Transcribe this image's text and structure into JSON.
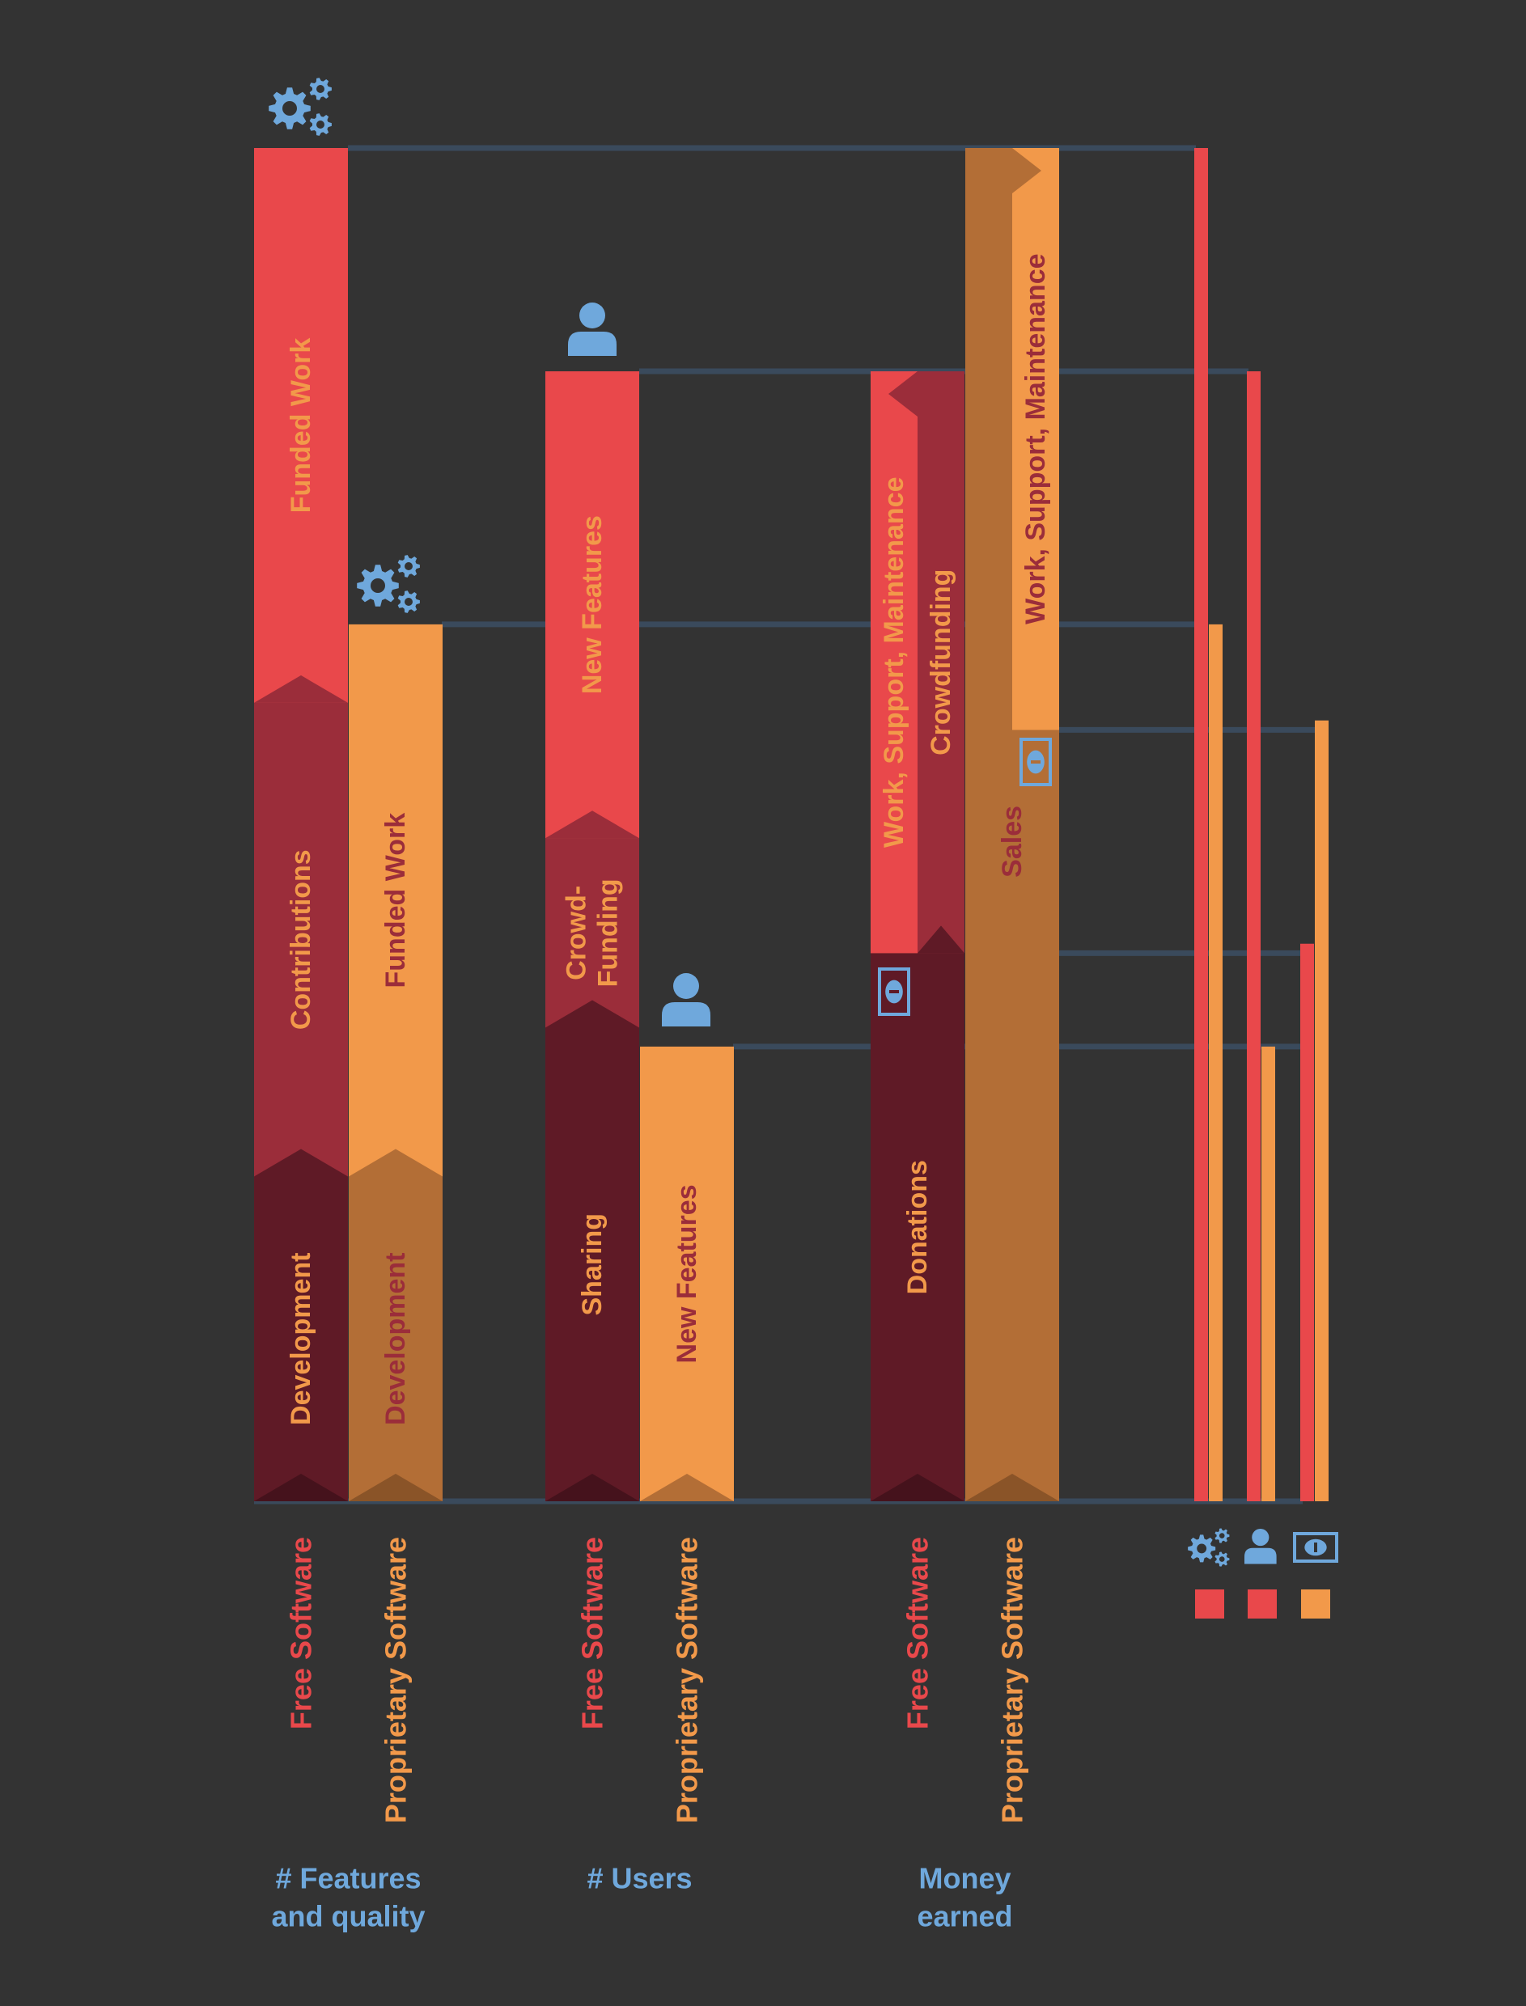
{
  "colors": {
    "background": "#333333",
    "guide": "#3a4a5c",
    "blue": "#6fa8dc",
    "red": "#e9484b",
    "crimson": "#9b2d3a",
    "maroon": "#5f1a26",
    "maroon_dark": "#45121c",
    "orange": "#f2994a",
    "brown": "#b36e36",
    "brown_dark": "#8a5428"
  },
  "chart_data": {
    "type": "bar",
    "stacked": true,
    "ylim": [
      0,
      100
    ],
    "groups": [
      {
        "title": "# Features and quality",
        "title_lines": [
          "# Features",
          "and quality"
        ],
        "icon": "gears-icon",
        "bars": [
          {
            "label": "Free Software",
            "segments": [
              {
                "label": "Development",
                "from": 0,
                "to": 24,
                "color": "maroon",
                "text": "orange"
              },
              {
                "label": "Contributions",
                "from": 24,
                "to": 59,
                "color": "crimson",
                "text": "orange"
              },
              {
                "label": "Funded Work",
                "from": 59,
                "to": 100,
                "color": "red",
                "text": "orange"
              }
            ]
          },
          {
            "label": "Proprietary Software",
            "segments": [
              {
                "label": "Development",
                "from": 0,
                "to": 24,
                "color": "brown",
                "text": "crimson"
              },
              {
                "label": "Funded Work",
                "from": 24,
                "to": 64.8,
                "color": "orange",
                "text": "crimson"
              }
            ]
          }
        ]
      },
      {
        "title": "# Users",
        "title_lines": [
          "# Users"
        ],
        "icon": "user-icon",
        "bars": [
          {
            "label": "Free Software",
            "segments": [
              {
                "label": "Sharing",
                "from": 0,
                "to": 35,
                "color": "maroon",
                "text": "orange"
              },
              {
                "label": "Crowd-\nFunding",
                "from": 35,
                "to": 49,
                "color": "crimson",
                "text": "orange"
              },
              {
                "label": "New Features",
                "from": 49,
                "to": 83.5,
                "color": "red",
                "text": "orange"
              }
            ]
          },
          {
            "label": "Proprietary Software",
            "segments": [
              {
                "label": "New Features",
                "from": 0,
                "to": 33.6,
                "color": "orange",
                "text": "crimson"
              }
            ]
          }
        ]
      },
      {
        "title": "Money earned",
        "title_lines": [
          "Money",
          "earned"
        ],
        "icon": "banknote-icon",
        "bars": [
          {
            "label": "Free Software",
            "segments": [
              {
                "label": "Donations",
                "from": 0,
                "to": 40.5,
                "color": "maroon",
                "text": "orange"
              },
              {
                "label": "Work, Support, Maintenance",
                "from": 40.5,
                "to": 83.5,
                "color": "red",
                "text": "orange",
                "part": "left"
              },
              {
                "label": "Crowdfunding",
                "from": 40.5,
                "to": 83.5,
                "color": "crimson",
                "text": "orange",
                "part": "right"
              }
            ]
          },
          {
            "label": "Proprietary Software",
            "segments": [
              {
                "label": "Sales",
                "from": 0,
                "to": 100,
                "color": "brown",
                "text": "crimson"
              },
              {
                "label": "Work, Support, Maintenance",
                "from": 57,
                "to": 100,
                "color": "orange",
                "text": "crimson",
                "part": "right"
              }
            ]
          }
        ]
      }
    ],
    "summary": {
      "legend_icons": [
        "gears-icon",
        "user-icon",
        "banknote-icon"
      ],
      "legend_swatches": [
        "red",
        "red",
        "orange"
      ],
      "pairs": [
        {
          "free": 100,
          "proprietary": 64.8
        },
        {
          "free": 83.5,
          "proprietary": 33.6
        },
        {
          "free": 41.2,
          "proprietary": 57.7
        }
      ]
    }
  }
}
